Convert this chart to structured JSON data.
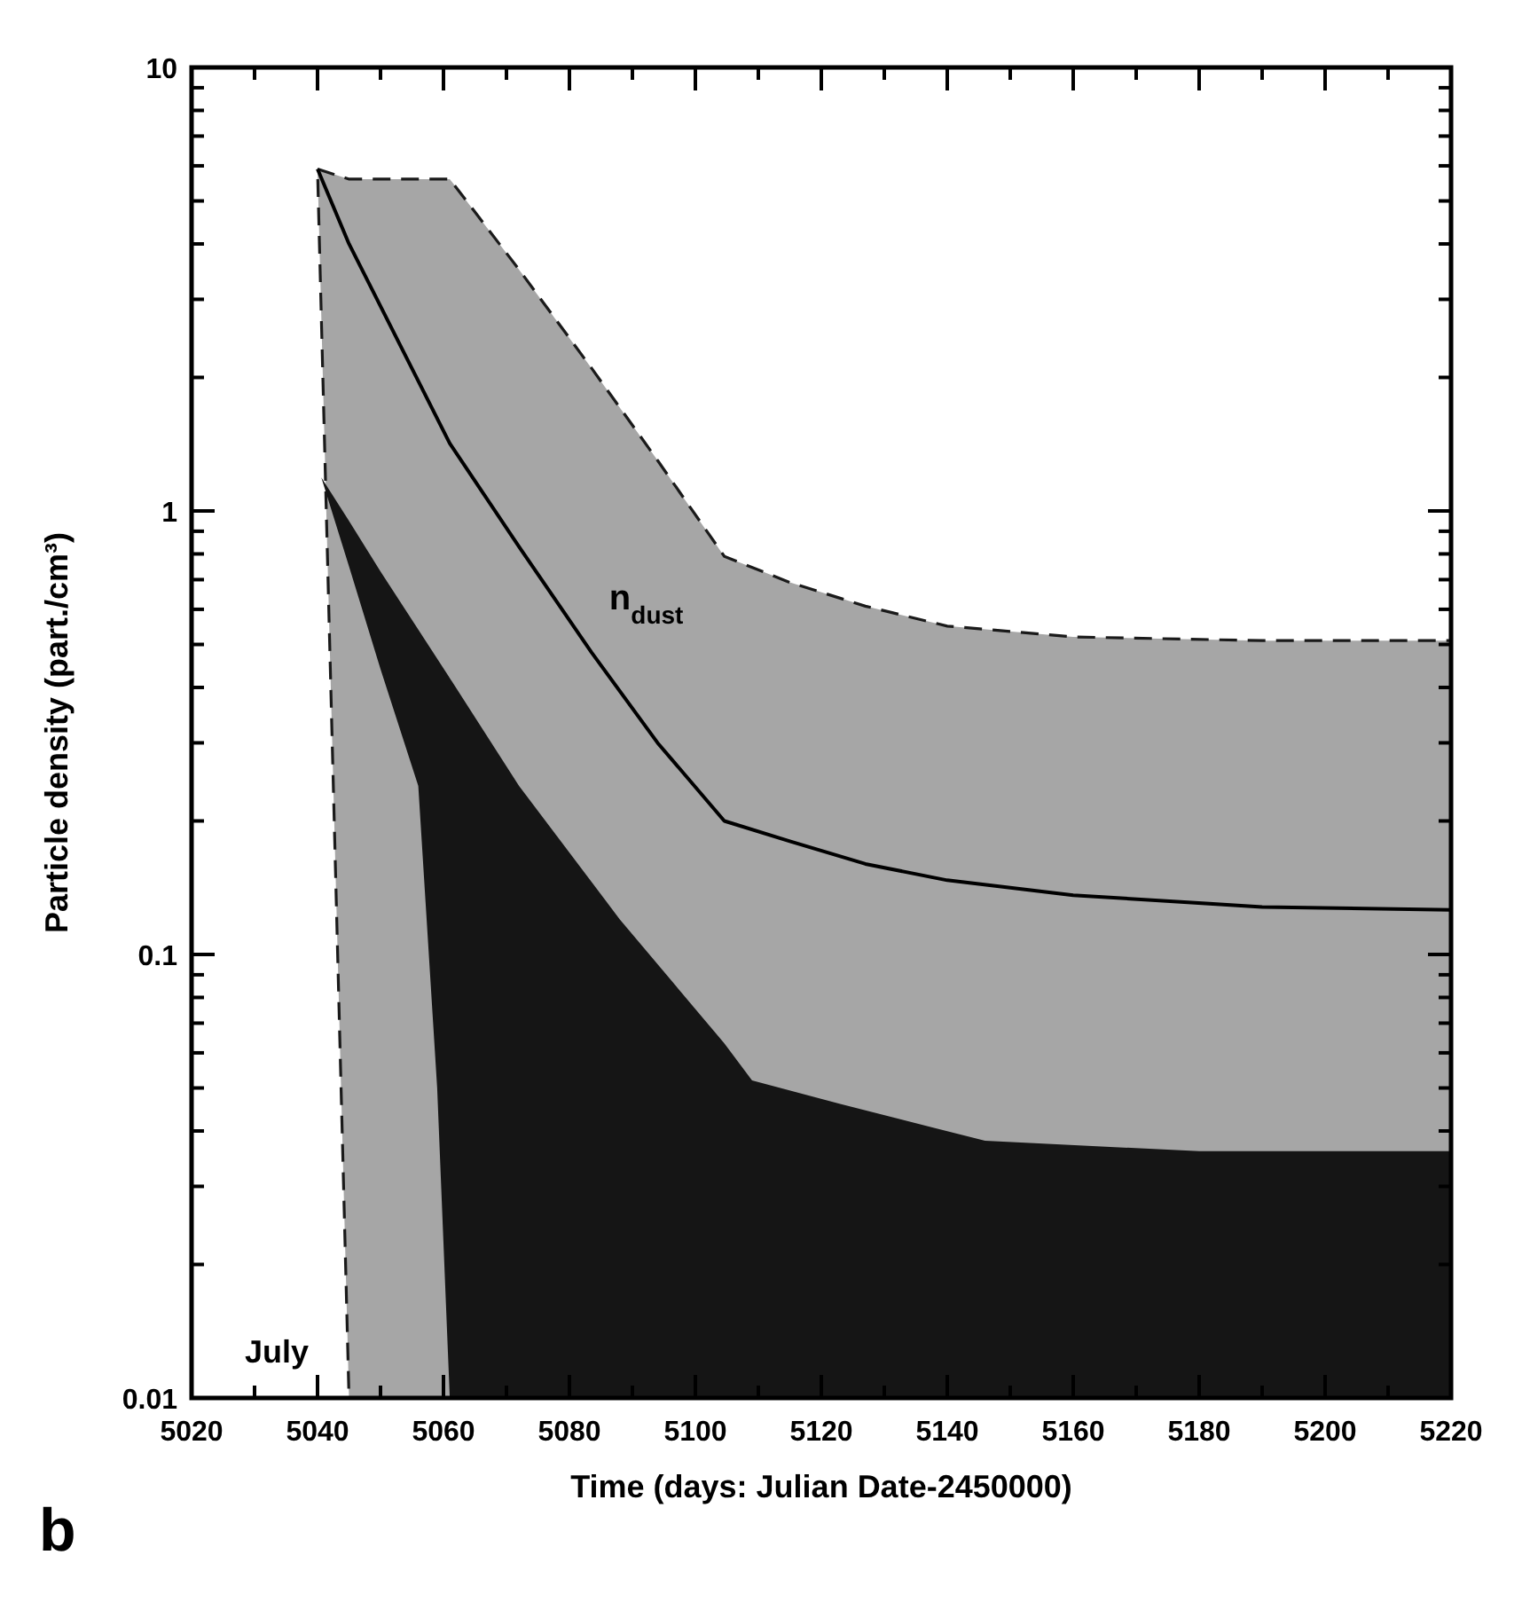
{
  "chart_data": {
    "type": "area",
    "xlabel": "Time (days: Julian Date-2450000)",
    "ylabel": "Particle density (part./cm³)",
    "log": "y",
    "xlim": [
      5020,
      5220
    ],
    "ylim": [
      0.01,
      10
    ],
    "xticks": [
      5020,
      {
        "value": 5030,
        "label": null
      },
      5040,
      {
        "value": 5050,
        "label": null
      },
      5060,
      {
        "value": 5070,
        "label": null
      },
      5080,
      {
        "value": 5090,
        "label": null
      },
      5100,
      {
        "value": 5110,
        "label": null
      },
      5120,
      {
        "value": 5130,
        "label": null
      },
      5140,
      {
        "value": 5150,
        "label": null
      },
      5160,
      {
        "value": 5170,
        "label": null
      },
      5180,
      {
        "value": 5190,
        "label": null
      },
      5200,
      {
        "value": 5210,
        "label": null
      },
      5220
    ],
    "yticks": [
      0.01,
      {
        "value": 0.02,
        "label": null
      },
      {
        "value": 0.03,
        "label": null
      },
      {
        "value": 0.04,
        "label": null
      },
      {
        "value": 0.05,
        "label": null
      },
      {
        "value": 0.06,
        "label": null
      },
      {
        "value": 0.07,
        "label": null
      },
      {
        "value": 0.08,
        "label": null
      },
      {
        "value": 0.09,
        "label": null
      },
      0.1,
      {
        "value": 0.2,
        "label": null
      },
      {
        "value": 0.3,
        "label": null
      },
      {
        "value": 0.4,
        "label": null
      },
      {
        "value": 0.5,
        "label": null
      },
      {
        "value": 0.6,
        "label": null
      },
      {
        "value": 0.7,
        "label": null
      },
      {
        "value": 0.8,
        "label": null
      },
      {
        "value": 0.9,
        "label": null
      },
      1,
      {
        "value": 2,
        "label": null
      },
      {
        "value": 3,
        "label": null
      },
      {
        "value": 4,
        "label": null
      },
      {
        "value": 5,
        "label": null
      },
      {
        "value": 6,
        "label": null
      },
      {
        "value": 7,
        "label": null
      },
      {
        "value": 8,
        "label": null
      },
      {
        "value": 9,
        "label": null
      },
      10
    ],
    "series": [
      {
        "color": "#151515",
        "x": [
          5061,
          5059,
          5056,
          5050,
          5045,
          5040.6,
          5045,
          5050,
          5056,
          5061,
          5072,
          5088,
          5104.6,
          5109,
          5123,
          5146,
          5180,
          5220
        ],
        "values": [
          0.01,
          0.05,
          0.24,
          0.44,
          0.75,
          1.19,
          0.95,
          0.73,
          0.54,
          0.42,
          0.24,
          0.12,
          0.063,
          0.052,
          0.046,
          0.038,
          0.036,
          0.036
        ]
      },
      {
        "type": "line",
        "name": "n$_{dust}$",
        "color": "#000000",
        "x": [
          5040,
          5045,
          5061,
          5072,
          5083.5,
          5094,
          5104.6,
          5115,
          5127,
          5140,
          5160,
          5190,
          5220
        ],
        "values": [
          5.9,
          4.0,
          1.42,
          0.83,
          0.48,
          0.3,
          0.2,
          0.18,
          0.16,
          0.147,
          0.136,
          0.128,
          0.126
        ],
        "upper": [
          5.9,
          5.6,
          5.6,
          3.5,
          2.1,
          1.3,
          0.79,
          0.69,
          0.61,
          0.55,
          0.52,
          0.51,
          0.51
        ],
        "lower": [
          5.9,
          0.01,
          0.01,
          0.01,
          0.01,
          0.01,
          0.01,
          0.01,
          0.01,
          0.01,
          0.01,
          0.01,
          0.01
        ]
      }
    ],
    "annotations": [
      "b",
      "July"
    ]
  }
}
